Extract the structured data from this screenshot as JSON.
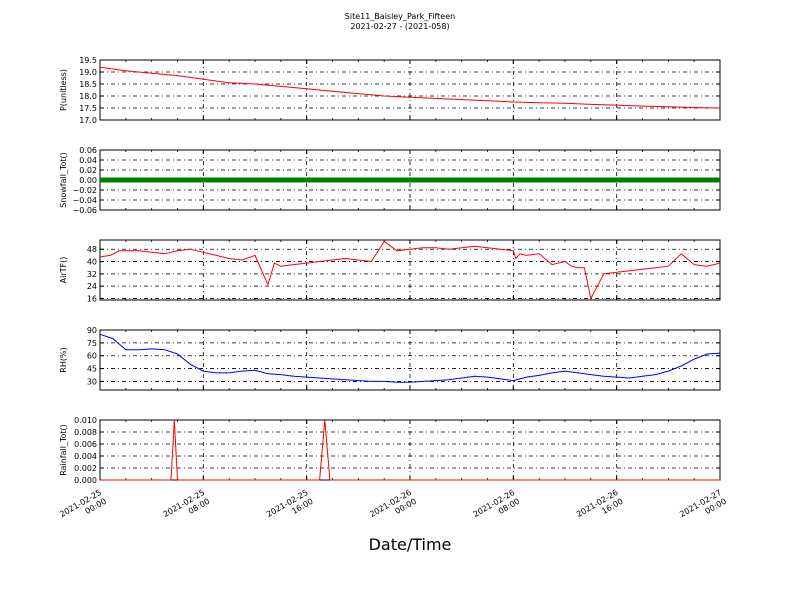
{
  "header": {
    "title": "Site11_Baisley_Park_Fifteen",
    "subtitle": "2021-02-27 - (2021-058)"
  },
  "xlabel": "Date/Time",
  "x_ticks": [
    {
      "t": 0,
      "line1": "2021-02-25",
      "line2": "00:00"
    },
    {
      "t": 8,
      "line1": "2021-02-25",
      "line2": "08:00"
    },
    {
      "t": 16,
      "line1": "2021-02-25",
      "line2": "16:00"
    },
    {
      "t": 24,
      "line1": "2021-02-26",
      "line2": "00:00"
    },
    {
      "t": 32,
      "line1": "2021-02-26",
      "line2": "08:00"
    },
    {
      "t": 40,
      "line1": "2021-02-26",
      "line2": "16:00"
    },
    {
      "t": 48,
      "line1": "2021-02-27",
      "line2": "00:00"
    }
  ],
  "chart_data": [
    {
      "type": "line",
      "ylabel": "P(unitless)",
      "ylim": [
        17.0,
        19.5
      ],
      "yticks": [
        "17.0",
        "17.5",
        "18.0",
        "18.5",
        "19.0",
        "19.5"
      ],
      "color": "#ff0000",
      "x_unit": "hours since 2021-02-25 00:00",
      "x": [
        0,
        2,
        4,
        6,
        8,
        10,
        12,
        14,
        16,
        18,
        20,
        22,
        24,
        26,
        28,
        30,
        32,
        34,
        36,
        38,
        40,
        42,
        44,
        46,
        48
      ],
      "y": [
        19.2,
        19.05,
        18.95,
        18.85,
        18.7,
        18.55,
        18.5,
        18.4,
        18.3,
        18.2,
        18.1,
        18.0,
        17.95,
        17.9,
        17.85,
        17.8,
        17.75,
        17.72,
        17.7,
        17.65,
        17.62,
        17.58,
        17.55,
        17.52,
        17.5
      ]
    },
    {
      "type": "scatter",
      "ylabel": "Snowfall_Tot()",
      "ylim": [
        -0.06,
        0.06
      ],
      "yticks": [
        "−0.06",
        "−0.04",
        "−0.02",
        "0.00",
        "0.02",
        "0.04",
        "0.06"
      ],
      "color": "#007f00",
      "x": [
        0,
        48
      ],
      "y": [
        0.0,
        0.0
      ]
    },
    {
      "type": "line",
      "ylabel": "AirTF()",
      "ylim": [
        15,
        54
      ],
      "yticks": [
        "16",
        "24",
        "32",
        "40",
        "48"
      ],
      "color": "#ff0000",
      "x": [
        0,
        0.8,
        1.5,
        3,
        4,
        5,
        6,
        7,
        8,
        9,
        10,
        11,
        12,
        13,
        13.5,
        14,
        15,
        16,
        17,
        18,
        19,
        20,
        21,
        22,
        23,
        24,
        25,
        26,
        27,
        28,
        29,
        30,
        31,
        32,
        32.2,
        32.5,
        33,
        34,
        35,
        36,
        36.5,
        37,
        37.5,
        38,
        39,
        40,
        41,
        42,
        43,
        44,
        45,
        46,
        47,
        48
      ],
      "y": [
        43,
        44,
        47,
        47,
        46,
        45,
        47,
        48,
        46,
        44,
        42,
        41,
        44,
        25,
        39,
        37,
        38,
        39,
        40,
        41,
        42,
        41,
        40,
        53,
        47,
        48,
        49,
        49,
        48,
        49,
        50,
        49,
        48,
        47,
        42,
        45,
        44,
        45,
        38,
        40,
        37,
        36,
        36,
        16,
        32,
        33,
        34,
        35,
        36,
        37,
        45,
        38,
        37,
        39
      ],
      "y_note": "approximate"
    },
    {
      "type": "line",
      "ylabel": "RH(%)",
      "ylim": [
        20,
        90
      ],
      "yticks": [
        "30",
        "45",
        "60",
        "75",
        "90"
      ],
      "color": "#0000ff",
      "x": [
        0,
        1,
        2,
        3,
        4,
        5,
        6,
        7,
        8,
        9,
        10,
        11,
        12,
        13,
        14,
        15,
        16,
        17,
        18,
        19,
        20,
        21,
        22,
        23,
        24,
        25,
        26,
        27,
        28,
        29,
        30,
        31,
        32,
        33,
        34,
        35,
        36,
        37,
        38,
        39,
        40,
        41,
        42,
        43,
        44,
        45,
        46,
        47,
        48
      ],
      "y": [
        85,
        80,
        67,
        67,
        68,
        67,
        62,
        50,
        42,
        40,
        40,
        42,
        43,
        39,
        38,
        36,
        35,
        34,
        33,
        32,
        31,
        30,
        30,
        29,
        29,
        30,
        31,
        32,
        34,
        36,
        35,
        33,
        31,
        35,
        37,
        40,
        42,
        40,
        38,
        36,
        35,
        34,
        36,
        38,
        42,
        48,
        56,
        62,
        63
      ]
    },
    {
      "type": "line",
      "ylabel": "Rainfall_Tot()",
      "ylim": [
        0.0,
        0.01
      ],
      "yticks": [
        "0.000",
        "0.002",
        "0.004",
        "0.006",
        "0.008",
        "0.010"
      ],
      "color": "#ff0000",
      "x": [
        0,
        5.5,
        5.75,
        6.0,
        17.0,
        17.4,
        17.8,
        48
      ],
      "y": [
        0,
        0,
        0.01,
        0,
        0,
        0.01,
        0,
        0
      ]
    }
  ]
}
